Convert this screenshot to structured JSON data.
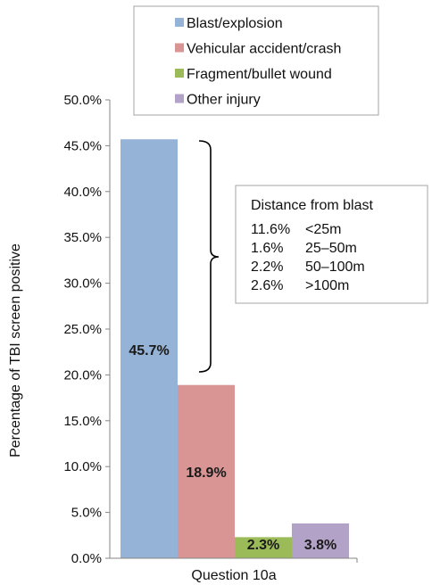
{
  "chart_data": {
    "type": "bar",
    "xlabel": "Question 10a",
    "ylabel": "Percentage of TBI screen positive",
    "ylim": [
      0,
      50
    ],
    "yticks": [
      "0.0%",
      "5.0%",
      "10.0%",
      "15.0%",
      "20.0%",
      "25.0%",
      "30.0%",
      "35.0%",
      "40.0%",
      "45.0%",
      "50.0%"
    ],
    "categories": [
      "Question 10a"
    ],
    "series": [
      {
        "name": "Blast/explosion",
        "values": [
          45.7
        ],
        "label": "45.7%",
        "color": "#95b3d7"
      },
      {
        "name": "Vehicular accident/crash",
        "values": [
          18.9
        ],
        "label": "18.9%",
        "color": "#d99594"
      },
      {
        "name": "Fragment/bullet wound",
        "values": [
          2.3
        ],
        "label": "2.3%",
        "color": "#9bbb59"
      },
      {
        "name": "Other injury",
        "values": [
          3.8
        ],
        "label": "3.8%",
        "color": "#b3a2c7"
      }
    ],
    "legend_position": "top",
    "grid": false,
    "annotation": {
      "title": "Distance from blast",
      "rows": [
        {
          "value": "11.6%",
          "range": "<25m"
        },
        {
          "value": "1.6%",
          "range": "25–50m"
        },
        {
          "value": "2.2%",
          "range": "50–100m"
        },
        {
          "value": "2.6%",
          "range": ">100m"
        }
      ]
    }
  }
}
